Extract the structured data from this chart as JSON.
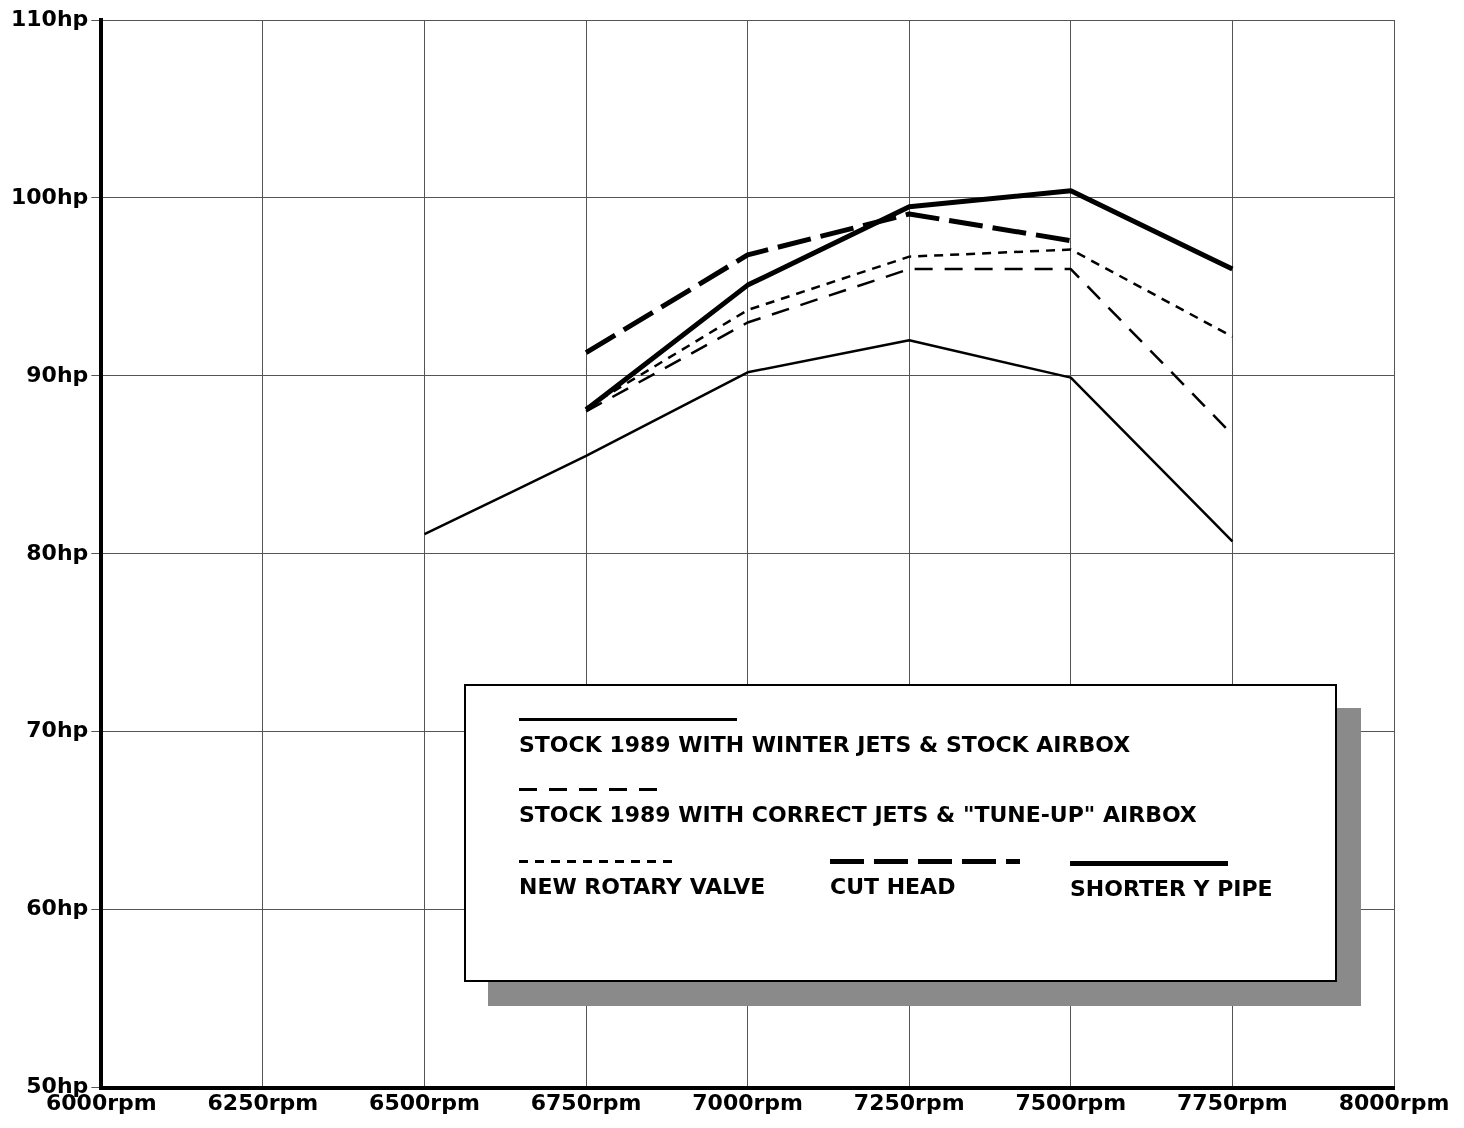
{
  "chart_data": {
    "type": "line",
    "x": [
      6500,
      6750,
      7000,
      7250,
      7500,
      7750
    ],
    "series": [
      {
        "name": "STOCK 1989 WITH WINTER JETS & STOCK AIRBOX",
        "color": "#000000",
        "line_style": "solid",
        "values": [
          81.1,
          85.5,
          90.2,
          92.0,
          89.9,
          80.7
        ]
      },
      {
        "name": "STOCK 1989 WITH CORRECT JETS & \"TUNE-UP\" AIRBOX",
        "color": "#000000",
        "line_style": "dashed",
        "values": [
          null,
          88.0,
          93.0,
          96.0,
          96.0,
          86.7
        ]
      },
      {
        "name": "NEW ROTARY VALVE",
        "color": "#000000",
        "line_style": "dotted",
        "values": [
          null,
          88.2,
          93.7,
          96.7,
          97.1,
          92.2
        ]
      },
      {
        "name": "CUT HEAD",
        "color": "#000000",
        "line_style": "dashed",
        "values": [
          null,
          91.3,
          96.8,
          99.1,
          97.6,
          null
        ]
      },
      {
        "name": "SHORTER Y PIPE",
        "color": "#000000",
        "line_style": "solid",
        "values": [
          null,
          88.1,
          95.1,
          99.5,
          100.4,
          96.0
        ]
      }
    ],
    "xlim": [
      6000,
      8000
    ],
    "xticks": [
      {
        "value": 6000,
        "label": "6000rpm"
      },
      {
        "value": 6250,
        "label": "6250rpm"
      },
      {
        "value": 6500,
        "label": "6500rpm"
      },
      {
        "value": 6750,
        "label": "6750rpm"
      },
      {
        "value": 7000,
        "label": "7000rpm"
      },
      {
        "value": 7250,
        "label": "7250rpm"
      },
      {
        "value": 7500,
        "label": "7500rpm"
      },
      {
        "value": 7750,
        "label": "7750rpm"
      },
      {
        "value": 8000,
        "label": "8000rpm"
      }
    ],
    "ylim": [
      50,
      110
    ],
    "yticks": [
      {
        "value": 50,
        "label": "50hp"
      },
      {
        "value": 60,
        "label": "60hp"
      },
      {
        "value": 70,
        "label": "70hp"
      },
      {
        "value": 80,
        "label": "80hp"
      },
      {
        "value": 90,
        "label": "90hp"
      },
      {
        "value": 100,
        "label": "100hp"
      },
      {
        "value": 110,
        "label": "110hp"
      }
    ],
    "grid": true,
    "legend": "bottom right",
    "marker": "none"
  }
}
